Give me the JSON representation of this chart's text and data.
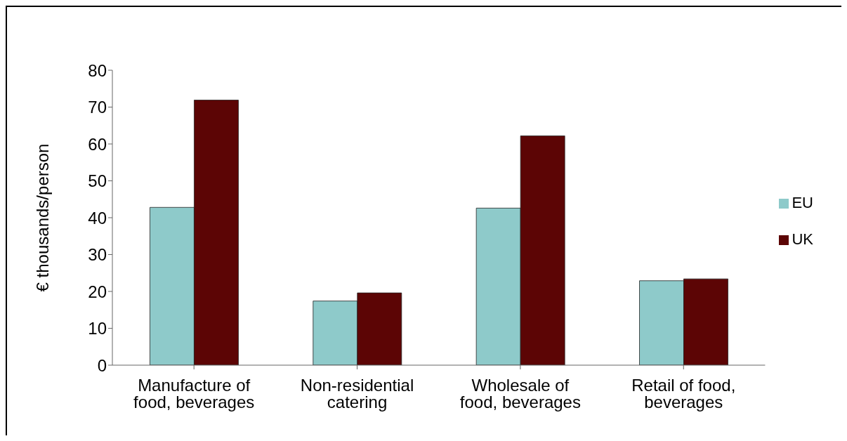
{
  "chart_data": {
    "type": "bar",
    "ylabel": "€ thousands/person",
    "categories": [
      "Manufacture of food, beverages",
      "Non-residential catering",
      "Wholesale of food, beverages",
      "Retail of food, beverages"
    ],
    "series": [
      {
        "name": "EU",
        "color": "#8ecaca",
        "values": [
          42.8,
          17.4,
          42.6,
          22.9
        ]
      },
      {
        "name": "UK",
        "color": "#5c0505",
        "values": [
          71.9,
          19.6,
          62.2,
          23.4
        ]
      }
    ],
    "ylim": [
      0,
      80
    ],
    "yticks": [
      0,
      10,
      20,
      30,
      40,
      50,
      60,
      70,
      80
    ],
    "grid": false,
    "legend": "right"
  }
}
